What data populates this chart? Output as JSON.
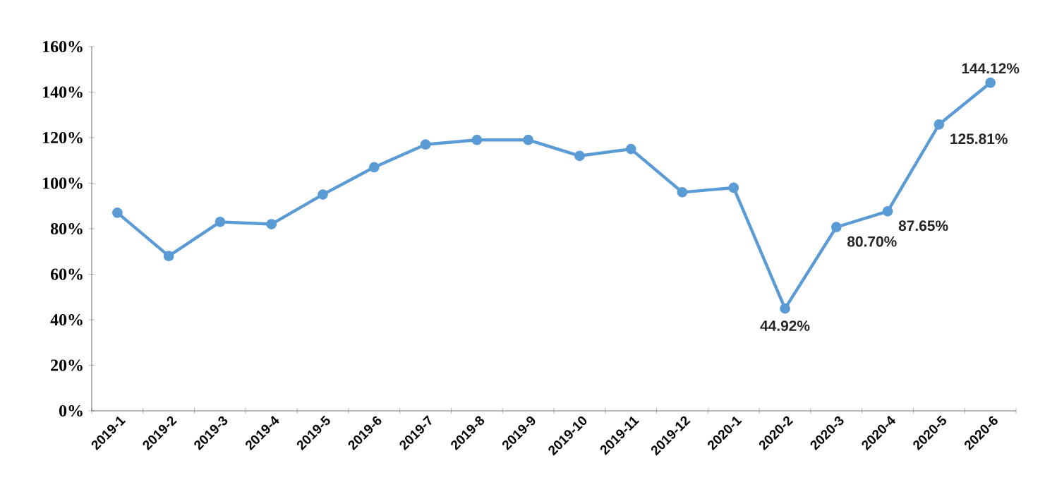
{
  "chart_data": {
    "type": "line",
    "categories": [
      "2019-1",
      "2019-2",
      "2019-3",
      "2019-4",
      "2019-5",
      "2019-6",
      "2019-7",
      "2019-8",
      "2019-9",
      "2019-10",
      "2019-11",
      "2019-12",
      "2020-1",
      "2020-2",
      "2020-3",
      "2020-4",
      "2020-5",
      "2020-6"
    ],
    "series": [
      {
        "color": "#5b9bd5",
        "values": [
          87,
          68,
          83,
          82,
          95,
          107,
          117,
          119,
          119,
          112,
          115,
          96,
          98,
          44.92,
          80.7,
          87.65,
          125.81,
          144.12
        ],
        "value_labels": [
          null,
          null,
          null,
          null,
          null,
          null,
          null,
          null,
          null,
          null,
          null,
          null,
          null,
          "44.92%",
          "80.70%",
          "87.65%",
          "125.81%",
          "144.12%"
        ]
      }
    ],
    "ylim": [
      0,
      160
    ],
    "yticks": [
      {
        "value": 0,
        "label": "0%"
      },
      {
        "value": 20,
        "label": "20%"
      },
      {
        "value": 40,
        "label": "40%"
      },
      {
        "value": 60,
        "label": "60%"
      },
      {
        "value": 80,
        "label": "80%"
      },
      {
        "value": 100,
        "label": "100%"
      },
      {
        "value": 120,
        "label": "120%"
      },
      {
        "value": 140,
        "label": "140%"
      },
      {
        "value": 160,
        "label": "160%"
      }
    ],
    "marker": "circle",
    "line_style": "solid"
  }
}
